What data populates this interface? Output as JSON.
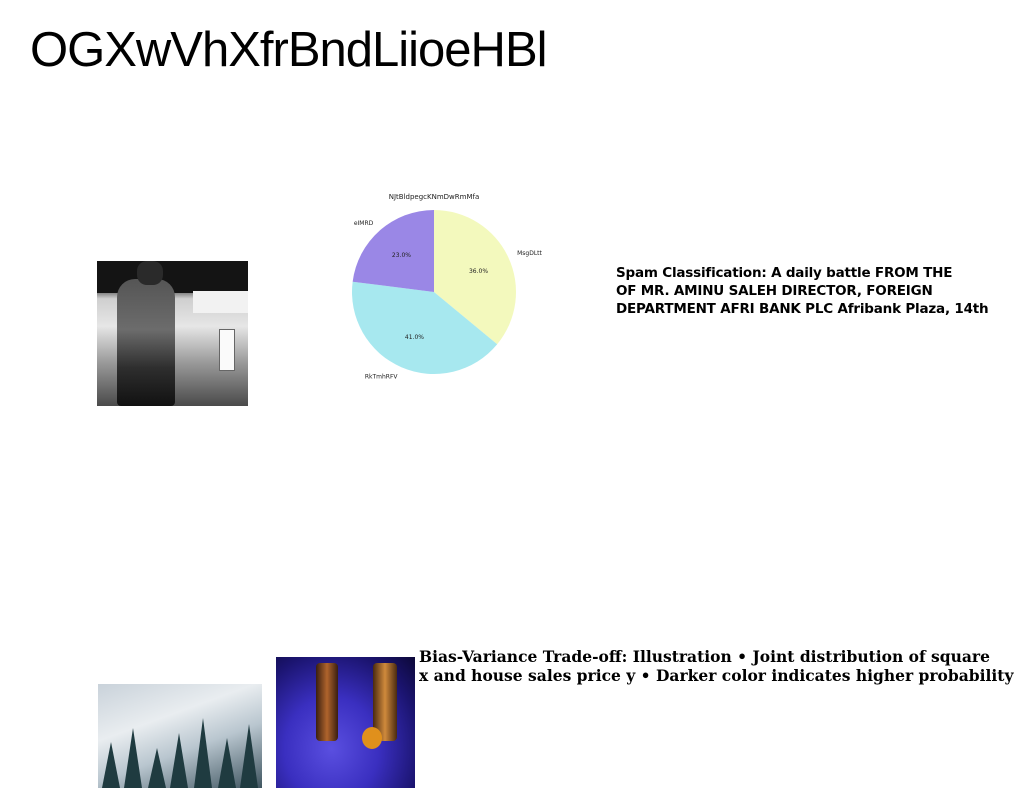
{
  "page": {
    "title": "OGXwVhXfrBndLiioeHBl"
  },
  "texts": {
    "spam_line1": "Spam Classification: A daily battle FROM THE",
    "spam_line2": "OF MR. AMINU SALEH DIRECTOR, FOREIGN",
    "spam_line3": "DEPARTMENT AFRI BANK PLC Afribank Plaza, 14th",
    "bias_line1": "Bias-Variance Trade-off: Illustration • Joint distribution of square",
    "bias_line2": "x and house sales price y • Darker color indicates higher probability"
  },
  "chart_data": {
    "type": "pie",
    "title": "NJtBldpegcKNmDwRmMfa",
    "slices": [
      {
        "label": "MsgDLtt",
        "value": 36.0,
        "pct_label": "36.0%",
        "color": "#f3f9bd"
      },
      {
        "label": "RkTmhRFV",
        "value": 41.0,
        "pct_label": "41.0%",
        "color": "#a7e8ef"
      },
      {
        "label": "eIMRD",
        "value": 23.0,
        "pct_label": "23.0%",
        "color": "#9a87e6"
      }
    ],
    "start_angle_deg": 90,
    "direction": "clockwise"
  }
}
